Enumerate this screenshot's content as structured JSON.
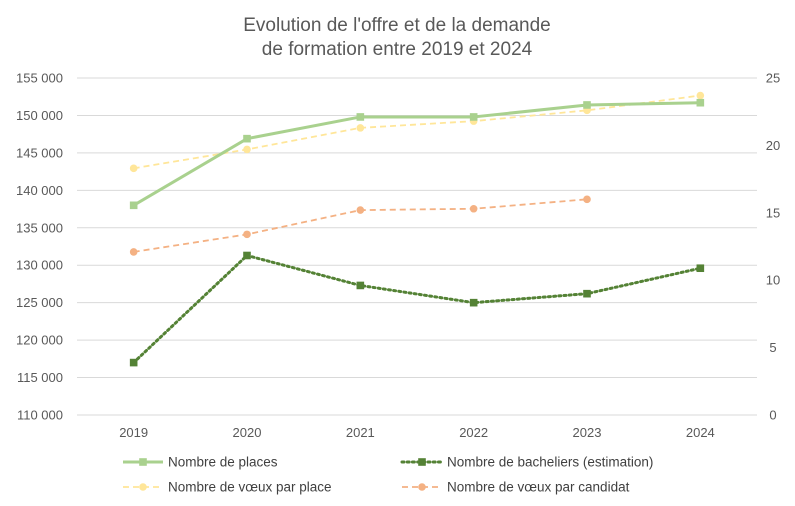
{
  "chart_data": {
    "type": "line",
    "title_lines": [
      "Evolution de l'offre et de la demande",
      "de formation entre 2019 et 2024"
    ],
    "categories": [
      "2019",
      "2020",
      "2021",
      "2022",
      "2023",
      "2024"
    ],
    "y_left": {
      "min": 110000,
      "max": 155000,
      "step": 5000,
      "tick_labels": [
        "110 000",
        "115 000",
        "120 000",
        "125 000",
        "130 000",
        "135 000",
        "140 000",
        "145 000",
        "150 000",
        "155 000"
      ]
    },
    "y_right": {
      "min": 0,
      "max": 25,
      "step": 5,
      "tick_labels": [
        "0",
        "5",
        "10",
        "15",
        "20",
        "25"
      ]
    },
    "grid": true,
    "legend_position": "bottom",
    "series": [
      {
        "name": "Nombre de places",
        "axis": "left",
        "style": "solid",
        "marker": "square",
        "color": "#a9d18e",
        "values": [
          138000,
          146900,
          149800,
          149800,
          151400,
          151700
        ]
      },
      {
        "name": "Nombre de bacheliers (estimation)",
        "axis": "left",
        "style": "dotted",
        "marker": "square",
        "color": "#548235",
        "values": [
          117000,
          131300,
          127300,
          125000,
          126200,
          129600
        ]
      },
      {
        "name": "Nombre de vœux par place",
        "axis": "right",
        "style": "dashed",
        "marker": "circle",
        "color": "#ffe699",
        "values": [
          18.3,
          19.7,
          21.3,
          21.8,
          22.6,
          23.7
        ]
      },
      {
        "name": "Nombre de vœux par candidat",
        "axis": "right",
        "style": "dashed",
        "marker": "circle",
        "color": "#f4b183",
        "values": [
          12.1,
          13.4,
          15.2,
          15.3,
          16.0,
          null
        ]
      }
    ]
  }
}
